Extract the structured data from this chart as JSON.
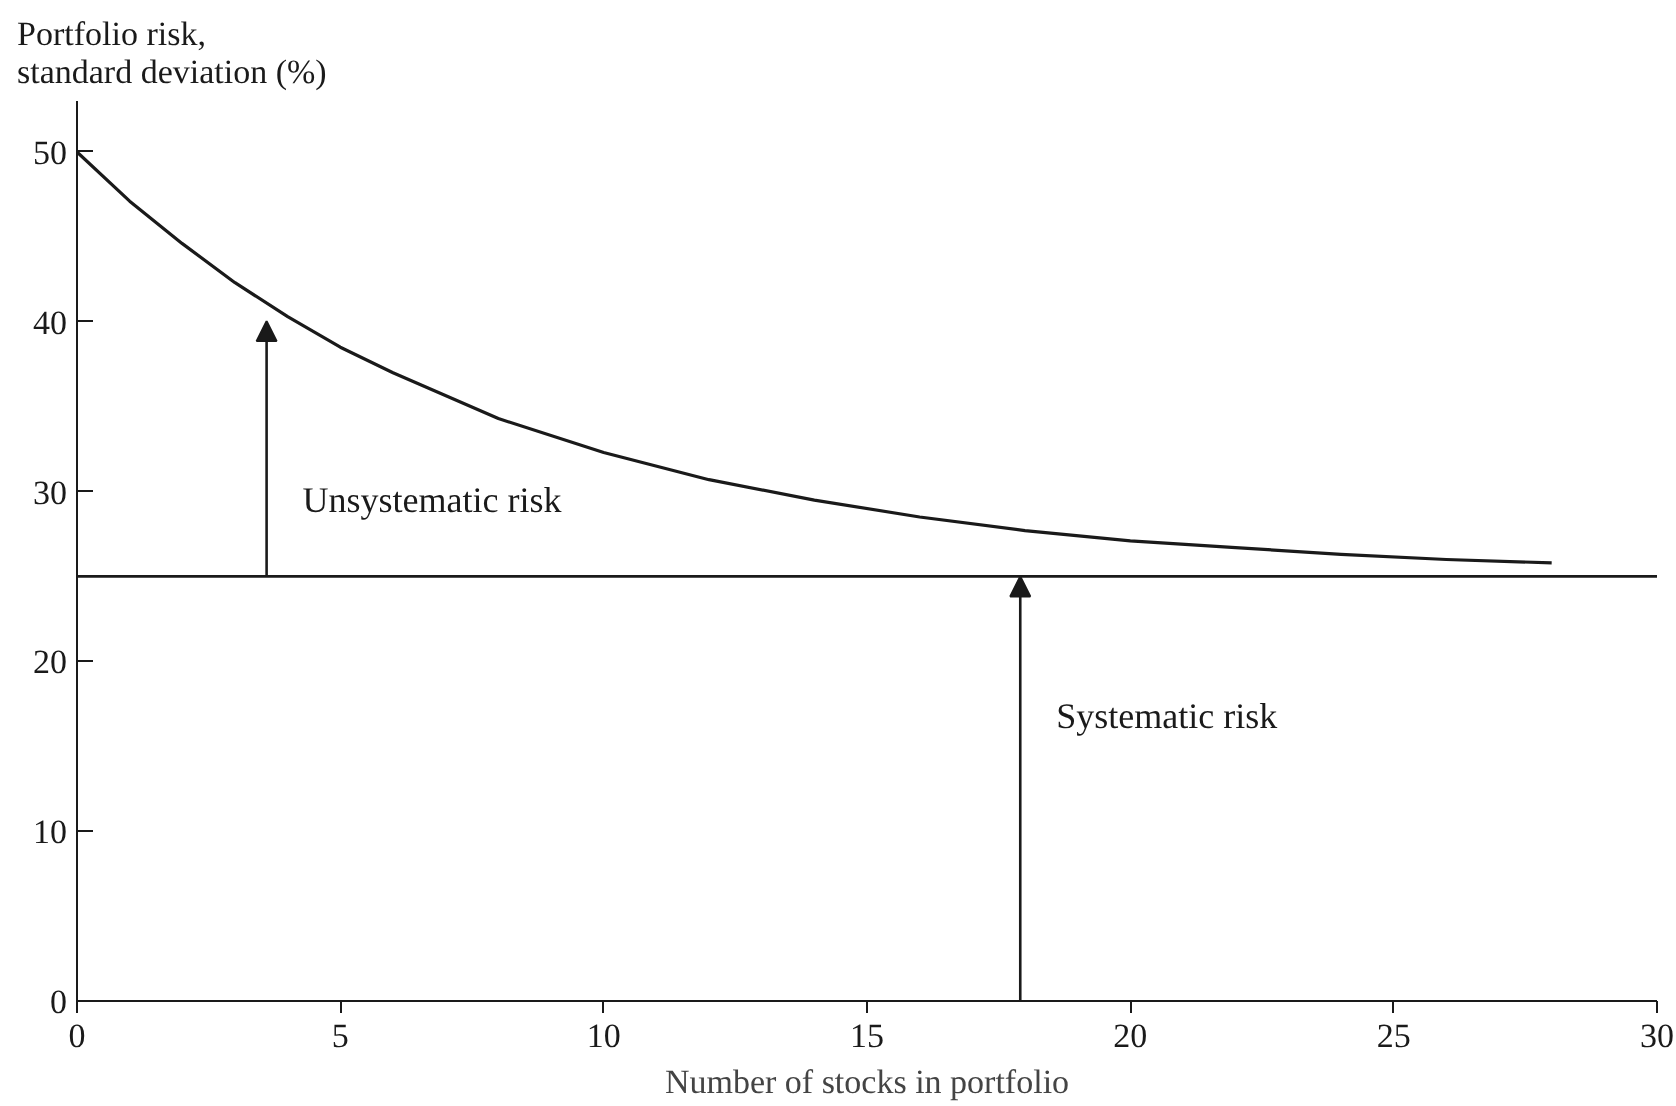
{
  "chart_data": {
    "type": "line",
    "xlabel": "Number of stocks in portfolio",
    "ylabel": "Portfolio risk,\nstandard deviation (%)",
    "x": [
      0,
      1,
      2,
      3,
      4,
      5,
      6,
      8,
      10,
      12,
      14,
      16,
      18,
      20,
      22,
      24,
      26,
      28
    ],
    "series": [
      {
        "color": "#1a1a1a",
        "values": [
          50,
          47.1,
          44.6,
          42.3,
          40.3,
          38.5,
          37.0,
          34.3,
          32.3,
          30.7,
          29.5,
          28.5,
          27.7,
          27.1,
          26.7,
          26.3,
          26.0,
          25.8
        ]
      }
    ],
    "xlim": [
      0,
      30
    ],
    "ylim": [
      0,
      53
    ],
    "xticks": [
      0,
      5,
      10,
      15,
      20,
      25,
      30
    ],
    "yticks": [
      0,
      10,
      20,
      30,
      40,
      50
    ],
    "ref_lines": [
      {
        "axis": "y",
        "value": 25,
        "color": "#1a1a1a"
      }
    ],
    "annotations": [
      "Unsystematic risk",
      "Systematic risk"
    ],
    "grid": false,
    "legend": false,
    "marker": "none",
    "line_style": "solid"
  }
}
